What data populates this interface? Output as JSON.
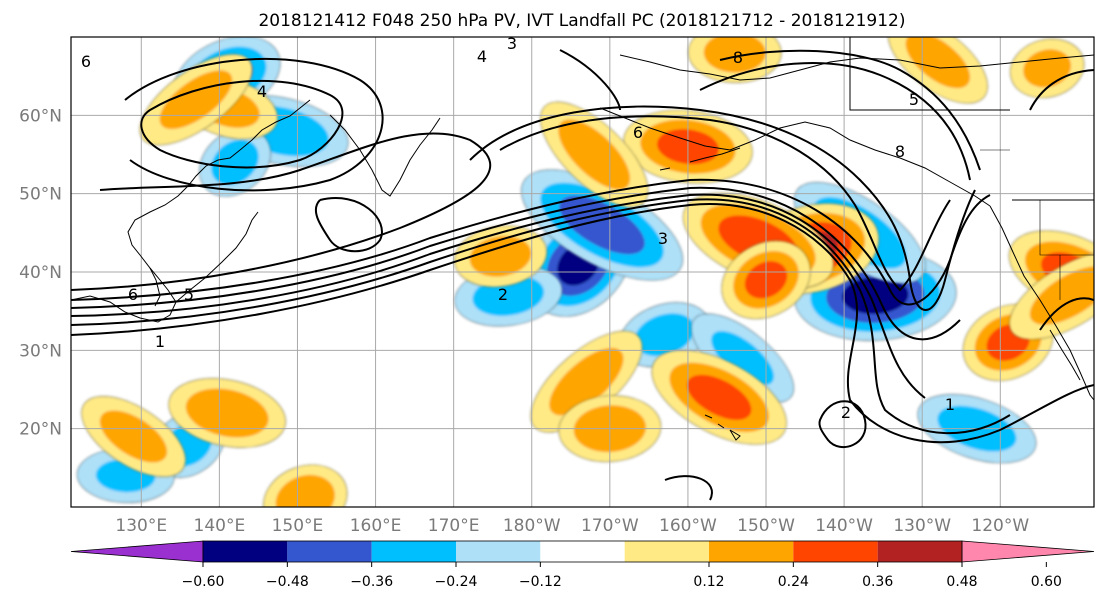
{
  "chart_data": {
    "type": "heatmap",
    "title": "2018121412 F048 250 hPa PV, IVT Landfall PC (2018121712 - 2018121912)",
    "x_ticks": [
      "130°E",
      "140°E",
      "150°E",
      "160°E",
      "170°E",
      "180°W",
      "170°W",
      "160°W",
      "150°W",
      "140°W",
      "130°W",
      "120°W"
    ],
    "y_ticks": [
      "20°N",
      "30°N",
      "40°N",
      "50°N",
      "60°N"
    ],
    "lon_range": [
      121,
      252
    ],
    "lat_range": [
      10,
      70
    ],
    "grid": true,
    "colorbar": {
      "tick_labels": [
        "−0.60",
        "−0.48",
        "−0.36",
        "−0.24",
        "−0.12",
        "0.12",
        "0.24",
        "0.36",
        "0.48",
        "0.60"
      ],
      "levels": [
        -0.6,
        -0.48,
        -0.36,
        -0.24,
        -0.12,
        0.12,
        0.24,
        0.36,
        0.48,
        0.6
      ],
      "colors": [
        "#9b30d0",
        "#000080",
        "#3457cf",
        "#00bfff",
        "#aee0f8",
        "#ffffff",
        "#ffea85",
        "#ffa500",
        "#ff4500",
        "#b22222",
        "#ff86ad"
      ],
      "extend": "both"
    },
    "pv_contour_labels": [
      "1",
      "2",
      "3",
      "4",
      "5",
      "6",
      "8"
    ],
    "shaded_features": [
      {
        "lon": 186,
        "lat": 41,
        "value": -0.55
      },
      {
        "lon": 177,
        "lat": 37,
        "value": -0.3
      },
      {
        "lon": 189,
        "lat": 46,
        "value": -0.45
      },
      {
        "lon": 141,
        "lat": 65,
        "value": -0.4
      },
      {
        "lon": 148,
        "lat": 58,
        "value": -0.35
      },
      {
        "lon": 142,
        "lat": 54,
        "value": -0.3
      },
      {
        "lon": 224,
        "lat": 37,
        "value": -0.55
      },
      {
        "lon": 222,
        "lat": 45,
        "value": -0.35
      },
      {
        "lon": 197,
        "lat": 32,
        "value": -0.3
      },
      {
        "lon": 237,
        "lat": 20,
        "value": -0.3
      },
      {
        "lon": 136,
        "lat": 18,
        "value": -0.3
      },
      {
        "lon": 128,
        "lat": 14,
        "value": -0.25
      },
      {
        "lon": 207,
        "lat": 29,
        "value": -0.25
      },
      {
        "lon": 216,
        "lat": 43,
        "value": 0.52
      },
      {
        "lon": 209,
        "lat": 44,
        "value": 0.45
      },
      {
        "lon": 210,
        "lat": 39,
        "value": 0.4
      },
      {
        "lon": 200,
        "lat": 56,
        "value": 0.4
      },
      {
        "lon": 188,
        "lat": 55,
        "value": 0.3
      },
      {
        "lon": 176,
        "lat": 42,
        "value": 0.3
      },
      {
        "lon": 204,
        "lat": 24,
        "value": 0.4
      },
      {
        "lon": 241,
        "lat": 31,
        "value": 0.4
      },
      {
        "lon": 141,
        "lat": 22,
        "value": 0.35
      },
      {
        "lon": 187,
        "lat": 26,
        "value": 0.3
      },
      {
        "lon": 190,
        "lat": 20,
        "value": 0.35
      },
      {
        "lon": 129,
        "lat": 19,
        "value": 0.28
      },
      {
        "lon": 151,
        "lat": 11,
        "value": 0.35
      },
      {
        "lon": 141,
        "lat": 61,
        "value": 0.28
      },
      {
        "lon": 137,
        "lat": 62,
        "value": 0.28
      },
      {
        "lon": 206,
        "lat": 68,
        "value": 0.3
      },
      {
        "lon": 232,
        "lat": 67,
        "value": 0.28
      },
      {
        "lon": 246,
        "lat": 66,
        "value": 0.28
      },
      {
        "lon": 249,
        "lat": 40,
        "value": 0.4
      },
      {
        "lon": 249,
        "lat": 37,
        "value": 0.3
      }
    ]
  }
}
